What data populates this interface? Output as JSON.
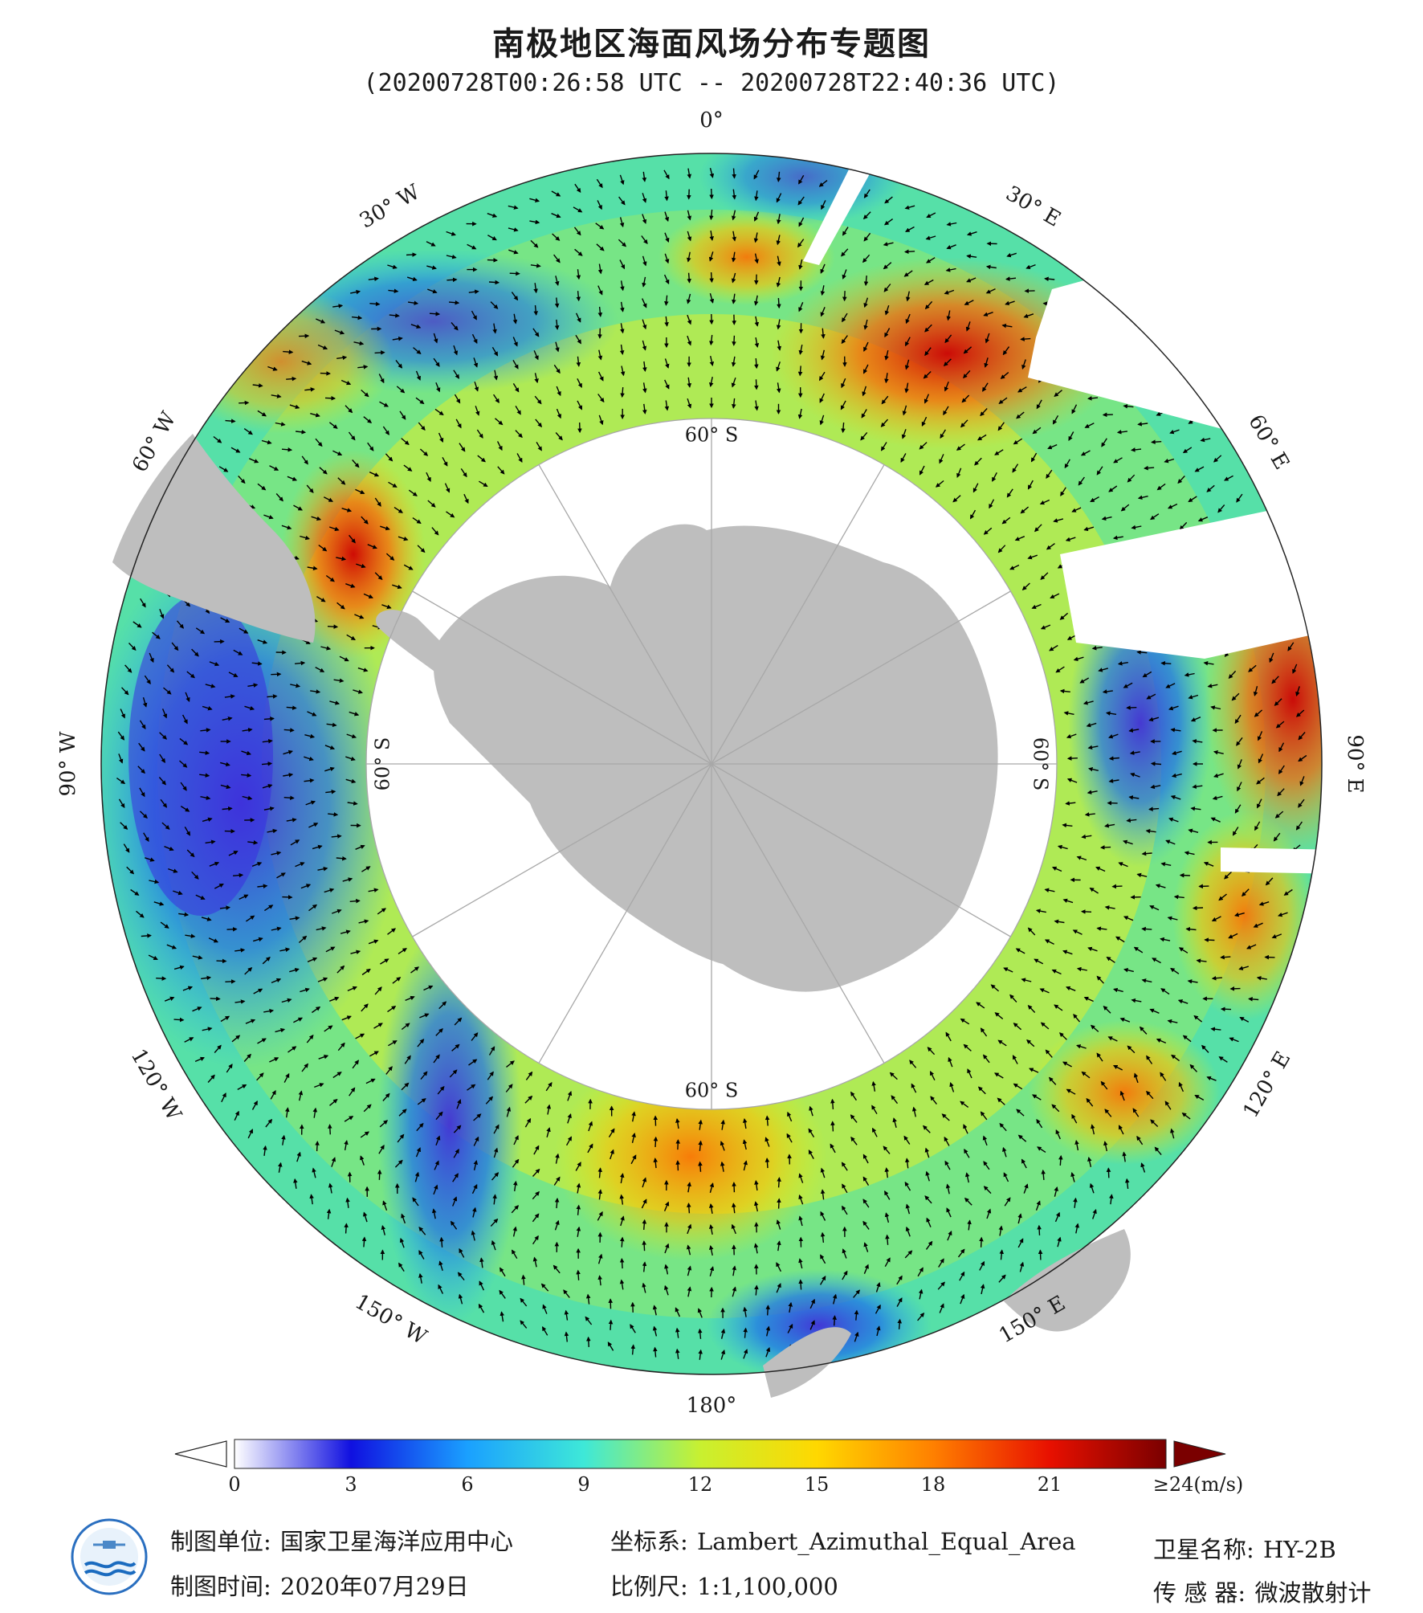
{
  "title": "南极地区海面风场分布专题图",
  "subtitle": "(20200728T00:26:58 UTC -- 20200728T22:40:36 UTC)",
  "map": {
    "projection": "south-polar azimuthal",
    "longitude_labels": [
      {
        "text": "0°",
        "lon": 0
      },
      {
        "text": "30° E",
        "lon": 30
      },
      {
        "text": "60° E",
        "lon": 60
      },
      {
        "text": "90° E",
        "lon": 90
      },
      {
        "text": "120° E",
        "lon": 120
      },
      {
        "text": "150° E",
        "lon": 150
      },
      {
        "text": "180°",
        "lon": 180
      },
      {
        "text": "150° W",
        "lon": -150
      },
      {
        "text": "120° W",
        "lon": -120
      },
      {
        "text": "90° W",
        "lon": -90
      },
      {
        "text": "60° W",
        "lon": -60
      },
      {
        "text": "30° W",
        "lon": -30
      }
    ],
    "latitude_labels": [
      {
        "text": "60° S",
        "lon": 0
      },
      {
        "text": "60° S",
        "lon": 90
      },
      {
        "text": "60° S",
        "lon": 180
      },
      {
        "text": "60° S",
        "lon": -90
      }
    ],
    "land_color": "#bebebe",
    "no_data_color": "#ffffff"
  },
  "colorbar": {
    "ticks": [
      "0",
      "3",
      "6",
      "9",
      "12",
      "15",
      "18",
      "21",
      "≥24(m/s)"
    ],
    "tick_values": [
      0,
      3,
      6,
      9,
      12,
      15,
      18,
      21,
      24
    ],
    "min": 0,
    "max": 24,
    "unit": "m/s",
    "colors": [
      "#ffffff",
      "#1010e0",
      "#1aa0ff",
      "#3ee8d8",
      "#c8f030",
      "#ffd800",
      "#ff8000",
      "#e81000",
      "#7a0000"
    ]
  },
  "footer": {
    "org_label": "制图单位:",
    "org_value": "国家卫星海洋应用中心",
    "time_label": "制图时间:",
    "time_value": "2020年07月29日",
    "crs_label": "坐标系:",
    "crs_value": "Lambert_Azimuthal_Equal_Area",
    "scale_label": "比例尺:",
    "scale_value": "1:1,100,000",
    "sat_label": "卫星名称:",
    "sat_value": "HY-2B",
    "sensor_label": "传 感 器:",
    "sensor_value": "微波散射计"
  },
  "logo_icon": "nsoas-logo-icon"
}
